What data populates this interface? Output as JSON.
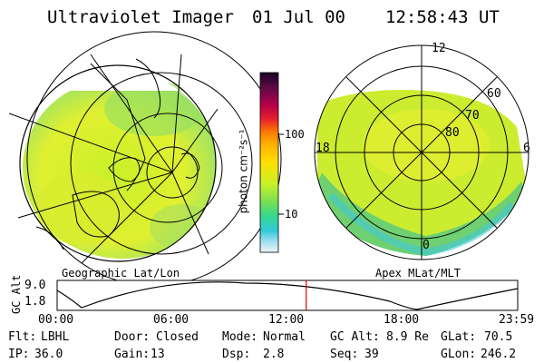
{
  "header": {
    "instrument": "Ultraviolet Imager",
    "date": "01 Jul 00",
    "time": "12:58:43 UT"
  },
  "left_panel": {
    "caption": "Geographic Lat/Lon"
  },
  "right_panel": {
    "caption": "Apex MLat/MLT",
    "mlt_labels": [
      "12",
      "18",
      "6",
      "0"
    ],
    "mlat_labels": [
      "60",
      "70",
      "80"
    ]
  },
  "colorbar": {
    "unit_label": "photon cm⁻²s⁻¹",
    "ticks": [
      "100",
      "10"
    ],
    "scale": "log",
    "colors": [
      "#1a0024",
      "#5a0a46",
      "#b4004a",
      "#e8202a",
      "#ff7800",
      "#ffb000",
      "#ffe000",
      "#c8f028",
      "#78e050",
      "#34d890",
      "#34c8d8",
      "#a0e0f0",
      "#f0f4f8"
    ]
  },
  "altitude_plot": {
    "ylabel": "GC Alt",
    "yticks": [
      "9.0",
      "1.8"
    ],
    "xticks": [
      "00:00",
      "06:00",
      "12:00",
      "18:00",
      "23:59"
    ],
    "current_time_hours": 12.98,
    "current_marker_color": "#e00000"
  },
  "status": {
    "row1": [
      {
        "label": "Flt:",
        "value": "LBHL"
      },
      {
        "label": "Door:",
        "value": "Closed"
      },
      {
        "label": "Mode:",
        "value": "Normal"
      },
      {
        "label": "GC Alt:",
        "value": "8.9 Re"
      },
      {
        "label": "GLat:",
        "value": "70.5"
      }
    ],
    "row2": [
      {
        "label": "IP:",
        "value": "36.0"
      },
      {
        "label": "Gain:",
        "value": "13"
      },
      {
        "label": "Dsp:",
        "value": "2.8"
      },
      {
        "label": "Seq:",
        "value": "39"
      },
      {
        "label": "GLon:",
        "value": "246.2"
      }
    ]
  }
}
